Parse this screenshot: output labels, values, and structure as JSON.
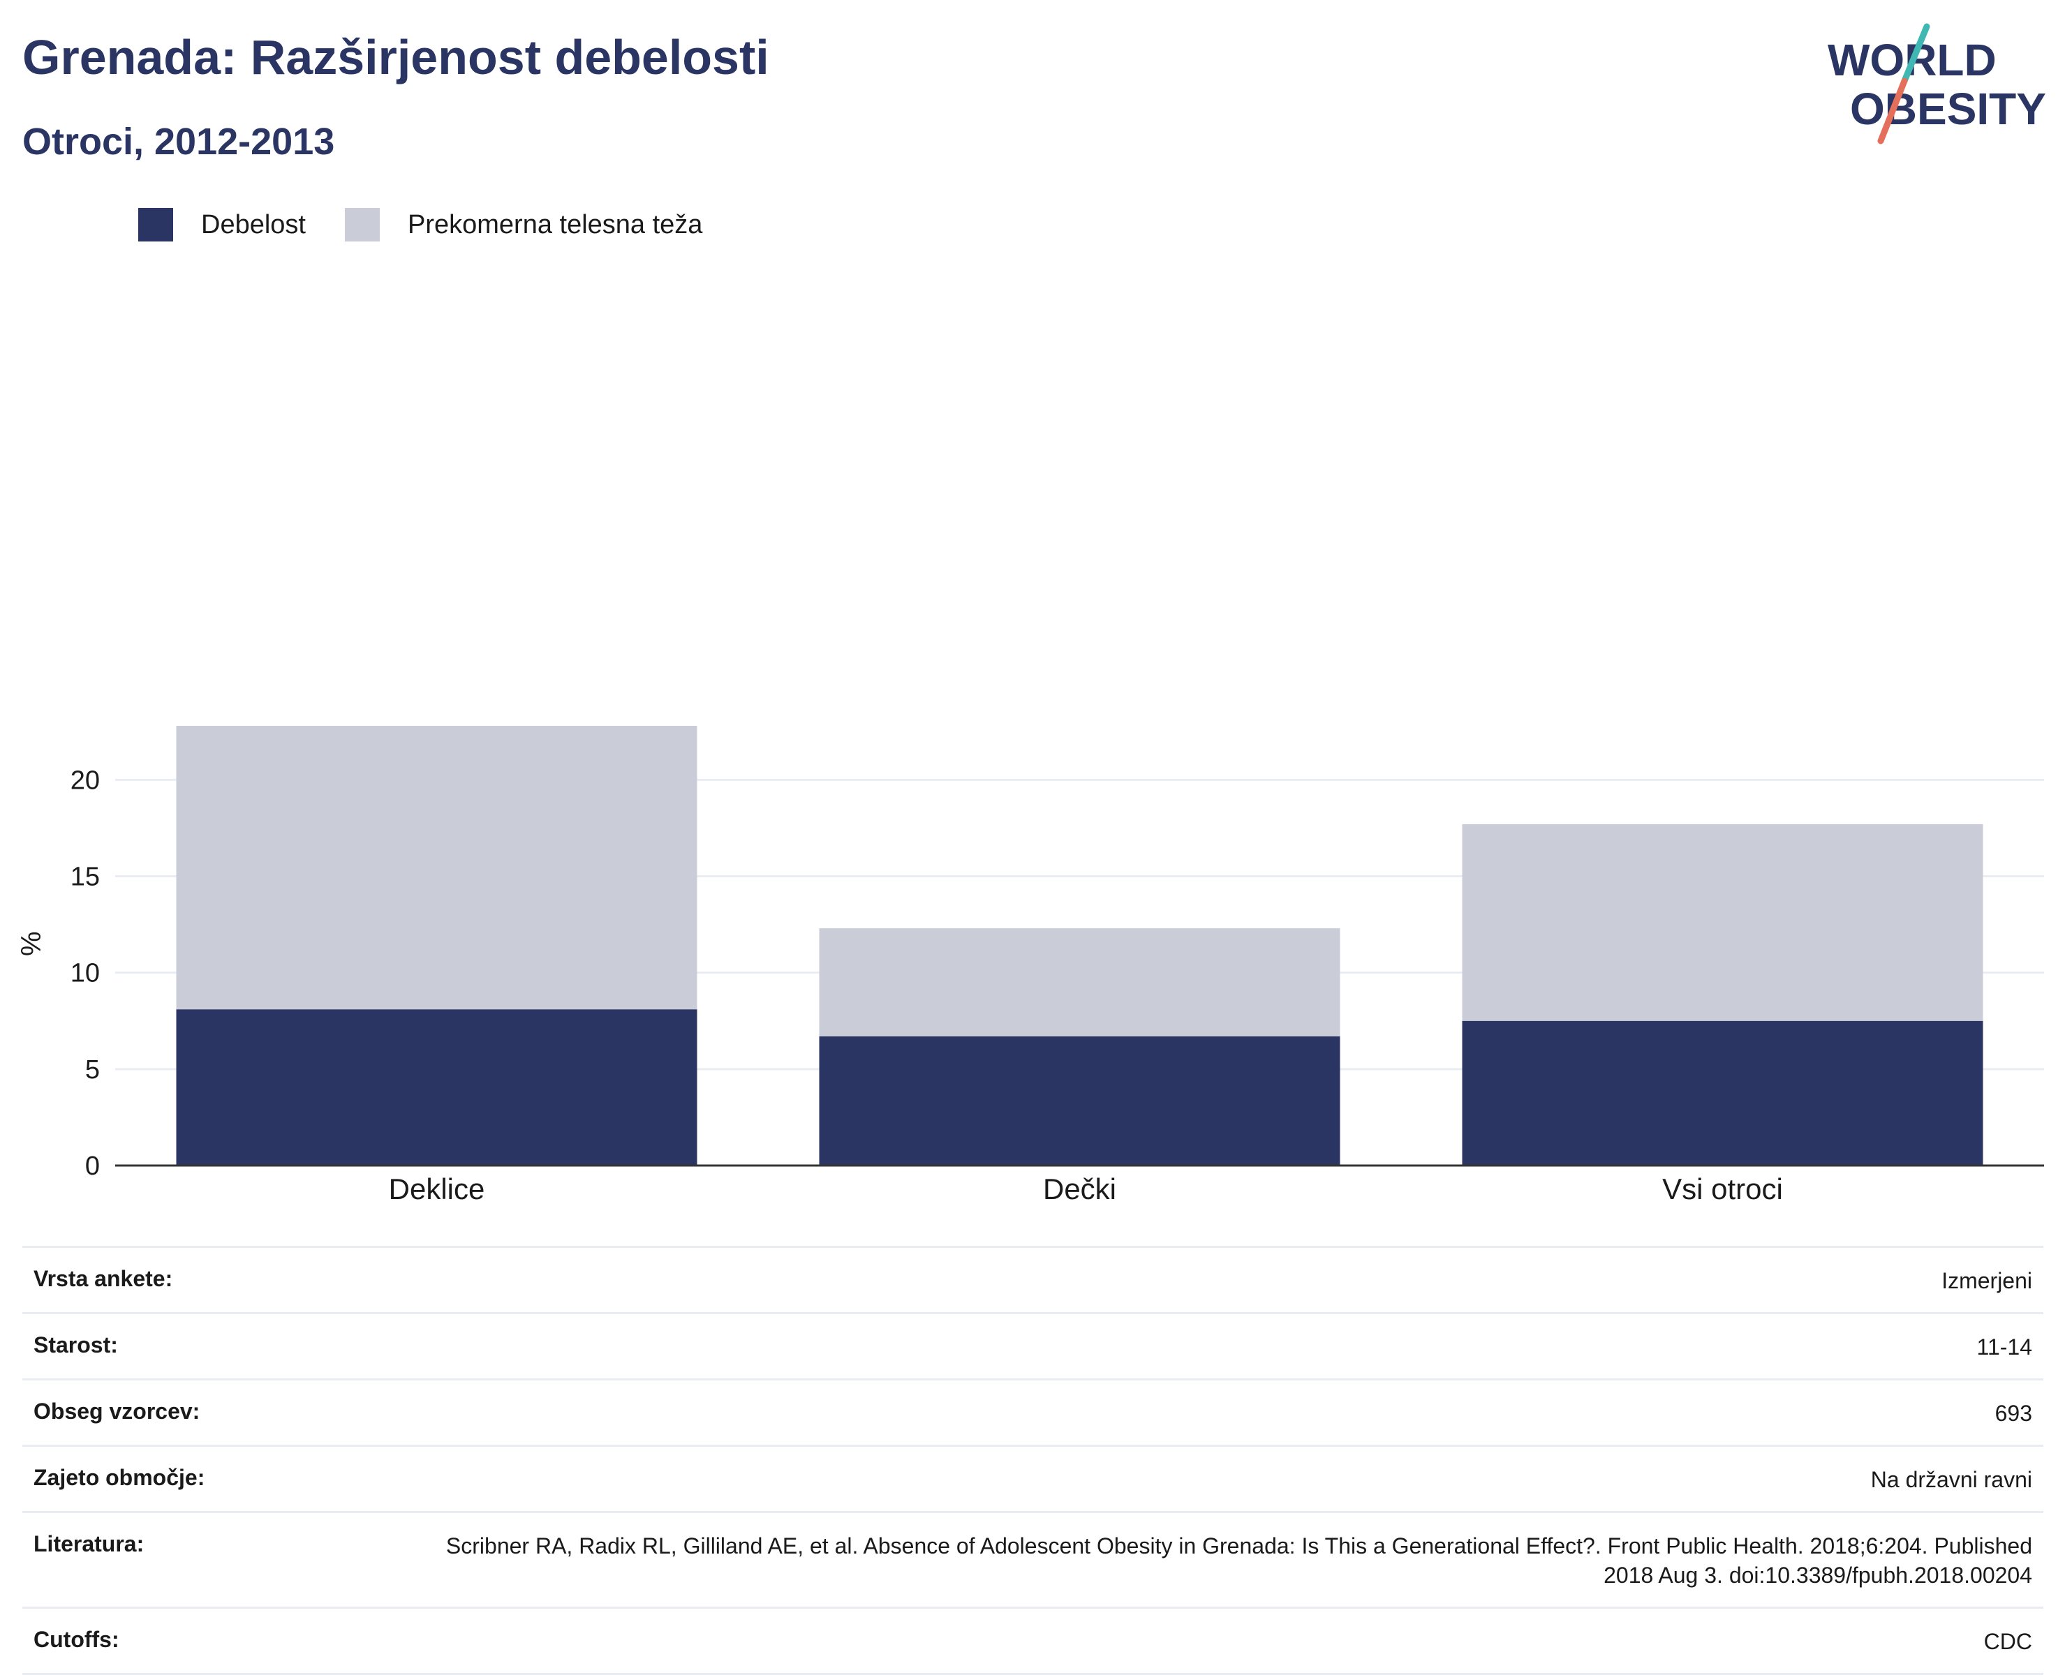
{
  "header": {
    "title": "Grenada: Razširjenost debelosti",
    "subtitle": "Otroci, 2012-2013"
  },
  "logo": {
    "line1": "WORLD",
    "line2": "OBESITY",
    "colors": {
      "text": "#2a3563",
      "slash_top": "#3fb8b4",
      "slash_bottom": "#e4705c"
    }
  },
  "colors": {
    "obesity": "#2a3563",
    "overweight": "#cacdd8",
    "grid": "#e9edf2",
    "axis": "#333333"
  },
  "chart_data": {
    "type": "bar",
    "stacked": true,
    "categories": [
      "Deklice",
      "Dečki",
      "Vsi otroci"
    ],
    "series": [
      {
        "name": "Debelost",
        "values": [
          8.1,
          6.7,
          7.5
        ],
        "color": "#2a3563"
      },
      {
        "name": "Prekomerna telesna teža",
        "values": [
          14.7,
          5.6,
          10.2
        ],
        "color": "#cacdd8"
      }
    ],
    "ylabel": "%",
    "yticks": [
      "0",
      "5",
      "10",
      "15",
      "20"
    ],
    "ylim": [
      0,
      22.8
    ],
    "grid": true,
    "legend_position": "top-left"
  },
  "meta": [
    {
      "key": "Vrsta ankete:",
      "value": "Izmerjeni"
    },
    {
      "key": "Starost:",
      "value": "11-14"
    },
    {
      "key": "Obseg vzorcev:",
      "value": "693"
    },
    {
      "key": "Zajeto območje:",
      "value": "Na državni ravni"
    },
    {
      "key": "Literatura:",
      "value": "Scribner RA, Radix RL, Gilliland AE, et al. Absence of Adolescent Obesity in Grenada: Is This a Generational Effect?. Front Public Health. 2018;6:204. Published 2018 Aug 3. doi:10.3389/fpubh.2018.00204"
    },
    {
      "key": "Cutoffs:",
      "value": "CDC"
    }
  ]
}
